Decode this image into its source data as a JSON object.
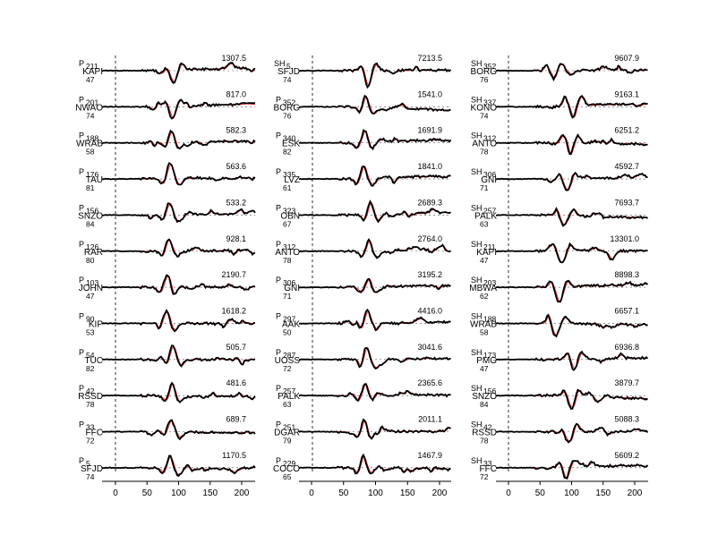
{
  "chart_data": {
    "type": "line",
    "figure": "seismogram comparison: observed (black) vs synthetic (red) waveforms",
    "series": [
      {
        "name": "",
        "color": "#000000"
      },
      {
        "name": "",
        "color": "#e41a1c"
      }
    ],
    "x_ticks": [
      0,
      50,
      100,
      150,
      200
    ],
    "xlim": [
      -15,
      220
    ],
    "grid": false,
    "columns": [
      {
        "traces": [
          {
            "phase": "P",
            "station": "KAPI",
            "azimuth": "211",
            "distance": "47",
            "amplitude": "1307.5"
          },
          {
            "phase": "P",
            "station": "NWAO",
            "azimuth": "201",
            "distance": "74",
            "amplitude": "817.0"
          },
          {
            "phase": "P",
            "station": "WRAB",
            "azimuth": "188",
            "distance": "58",
            "amplitude": "582.3"
          },
          {
            "phase": "P",
            "station": "TAU",
            "azimuth": "176",
            "distance": "81",
            "amplitude": "563.6"
          },
          {
            "phase": "P",
            "station": "SNZO",
            "azimuth": "156",
            "distance": "84",
            "amplitude": "533.2"
          },
          {
            "phase": "P",
            "station": "RAR",
            "azimuth": "126",
            "distance": "80",
            "amplitude": "928.1"
          },
          {
            "phase": "P",
            "station": "JOHN",
            "azimuth": "103",
            "distance": "47",
            "amplitude": "2190.7"
          },
          {
            "phase": "P",
            "station": "KIP",
            "azimuth": "90",
            "distance": "53",
            "amplitude": "1618.2"
          },
          {
            "phase": "P",
            "station": "TUC",
            "azimuth": "54",
            "distance": "82",
            "amplitude": "505.7"
          },
          {
            "phase": "P",
            "station": "RSSD",
            "azimuth": "42",
            "distance": "78",
            "amplitude": "481.6"
          },
          {
            "phase": "P",
            "station": "FFC",
            "azimuth": "33",
            "distance": "72",
            "amplitude": "689.7"
          },
          {
            "phase": "P",
            "station": "SFJD",
            "azimuth": "5",
            "distance": "74",
            "amplitude": "1170.5"
          }
        ]
      },
      {
        "traces": [
          {
            "phase": "SH",
            "station": "SFJD",
            "azimuth": "5",
            "distance": "74",
            "amplitude": "7213.5"
          },
          {
            "phase": "P",
            "station": "BORG",
            "azimuth": "352",
            "distance": "76",
            "amplitude": "1541.0"
          },
          {
            "phase": "P",
            "station": "ESK",
            "azimuth": "340",
            "distance": "82",
            "amplitude": "1691.9"
          },
          {
            "phase": "P",
            "station": "LVZ",
            "azimuth": "335",
            "distance": "61",
            "amplitude": "1841.0"
          },
          {
            "phase": "P",
            "station": "OBN",
            "azimuth": "323",
            "distance": "67",
            "amplitude": "2689.3"
          },
          {
            "phase": "P",
            "station": "ANTO",
            "azimuth": "312",
            "distance": "78",
            "amplitude": "2764.0"
          },
          {
            "phase": "P",
            "station": "GNI",
            "azimuth": "306",
            "distance": "71",
            "amplitude": "3195.2"
          },
          {
            "phase": "P",
            "station": "AAK",
            "azimuth": "297",
            "distance": "50",
            "amplitude": "4416.0"
          },
          {
            "phase": "P",
            "station": "UOSS",
            "azimuth": "287",
            "distance": "72",
            "amplitude": "3041.6"
          },
          {
            "phase": "P",
            "station": "PALK",
            "azimuth": "257",
            "distance": "63",
            "amplitude": "2365.6"
          },
          {
            "phase": "P",
            "station": "DGAR",
            "azimuth": "251",
            "distance": "79",
            "amplitude": "2011.1"
          },
          {
            "phase": "P",
            "station": "COCO",
            "azimuth": "229",
            "distance": "65",
            "amplitude": "1467.9"
          }
        ]
      },
      {
        "traces": [
          {
            "phase": "SH",
            "station": "BORG",
            "azimuth": "352",
            "distance": "76",
            "amplitude": "9607.9"
          },
          {
            "phase": "SH",
            "station": "KONO",
            "azimuth": "337",
            "distance": "74",
            "amplitude": "9163.1"
          },
          {
            "phase": "SH",
            "station": "ANTO",
            "azimuth": "312",
            "distance": "78",
            "amplitude": "6251.2"
          },
          {
            "phase": "SH",
            "station": "GNI",
            "azimuth": "306",
            "distance": "71",
            "amplitude": "4592.7"
          },
          {
            "phase": "SH",
            "station": "PALK",
            "azimuth": "257",
            "distance": "63",
            "amplitude": "7693.7"
          },
          {
            "phase": "SH",
            "station": "KAPI",
            "azimuth": "211",
            "distance": "47",
            "amplitude": "13301.0"
          },
          {
            "phase": "SH",
            "station": "MBWA",
            "azimuth": "203",
            "distance": "62",
            "amplitude": "8898.3"
          },
          {
            "phase": "SH",
            "station": "WRAB",
            "azimuth": "188",
            "distance": "58",
            "amplitude": "6657.1"
          },
          {
            "phase": "SH",
            "station": "PMG",
            "azimuth": "173",
            "distance": "47",
            "amplitude": "6936.8"
          },
          {
            "phase": "SH",
            "station": "SNZO",
            "azimuth": "156",
            "distance": "84",
            "amplitude": "3879.7"
          },
          {
            "phase": "SH",
            "station": "RSSD",
            "azimuth": "42",
            "distance": "78",
            "amplitude": "5088.3"
          },
          {
            "phase": "SH",
            "station": "FFC",
            "azimuth": "33",
            "distance": "72",
            "amplitude": "5609.2"
          }
        ]
      }
    ]
  }
}
